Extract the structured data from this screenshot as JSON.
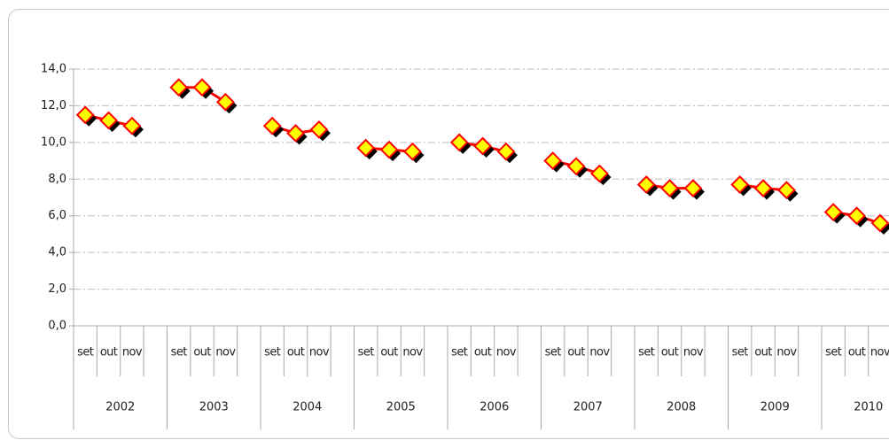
{
  "chart_data": {
    "type": "line",
    "categories": [
      "set",
      "out",
      "nov",
      null,
      "set",
      "out",
      "nov",
      null,
      "set",
      "out",
      "nov",
      null,
      "set",
      "out",
      "nov",
      null,
      "set",
      "out",
      "nov",
      null,
      "set",
      "out",
      "nov",
      null,
      "set",
      "out",
      "nov",
      null,
      "set",
      "out",
      "nov",
      null,
      "set",
      "out",
      "nov",
      null
    ],
    "category_groups": [
      "2002",
      "2003",
      "2004",
      "2005",
      "2006",
      "2007",
      "2008",
      "2009",
      "2010"
    ],
    "values": [
      11.5,
      11.2,
      10.9,
      null,
      13.0,
      13.0,
      12.2,
      null,
      10.9,
      10.5,
      10.7,
      null,
      9.7,
      9.6,
      9.5,
      null,
      10.0,
      9.8,
      9.5,
      null,
      9.0,
      8.7,
      8.3,
      null,
      7.7,
      7.5,
      7.5,
      null,
      7.7,
      7.5,
      7.4,
      null,
      6.2,
      6.0,
      5.6,
      null
    ],
    "color": "#ff0000",
    "marker_color": "#ffff00",
    "ylim": [
      0,
      14
    ],
    "yticks": [
      {
        "value": 0,
        "label": "0,0"
      },
      {
        "value": 2,
        "label": "2,0"
      },
      {
        "value": 4,
        "label": "4,0"
      },
      {
        "value": 6,
        "label": "6,0"
      },
      {
        "value": 8,
        "label": "8,0"
      },
      {
        "value": 10,
        "label": "10,0"
      },
      {
        "value": 12,
        "label": "12,0"
      },
      {
        "value": 14,
        "label": "14,0"
      }
    ],
    "grid": true
  }
}
